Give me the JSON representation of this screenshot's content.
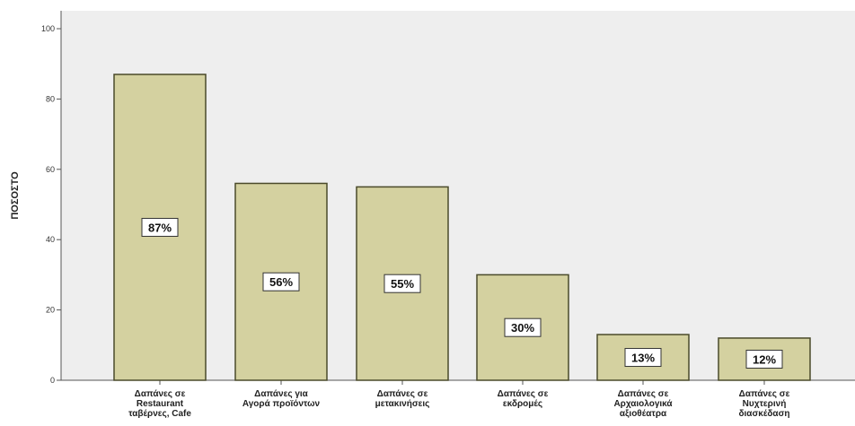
{
  "chart_data": {
    "type": "bar",
    "ylabel": "ΠΟΣΟΣΤΟ",
    "xlabel": "",
    "ylim": [
      0,
      100
    ],
    "yticks": [
      "0",
      "20",
      "40",
      "60",
      "80",
      "100"
    ],
    "categories": [
      [
        "Δαπάνες σε",
        "Restaurant",
        "ταβέρνες, Cafe"
      ],
      [
        "Δαπάνες για",
        "Αγορά προϊόντων"
      ],
      [
        "Δαπάνες σε",
        "μετακινήσεις"
      ],
      [
        "Δαπάνες σε",
        "εκδρομές"
      ],
      [
        "Δαπάνες σε",
        "Αρχαιολογικά",
        "αξιοθέατρα"
      ],
      [
        "Δαπάνες σε",
        "Νυχτερινή",
        "διασκέδαση"
      ]
    ],
    "values": [
      87,
      56,
      55,
      30,
      13,
      12
    ],
    "data_labels": [
      "87%",
      "56%",
      "55%",
      "30%",
      "13%",
      "12%"
    ],
    "colors": {
      "plot_background": "#EEEEEE",
      "bar_fill": "#D4D1A0",
      "bar_stroke": "#4A4A2A",
      "axis": "#555555"
    }
  }
}
